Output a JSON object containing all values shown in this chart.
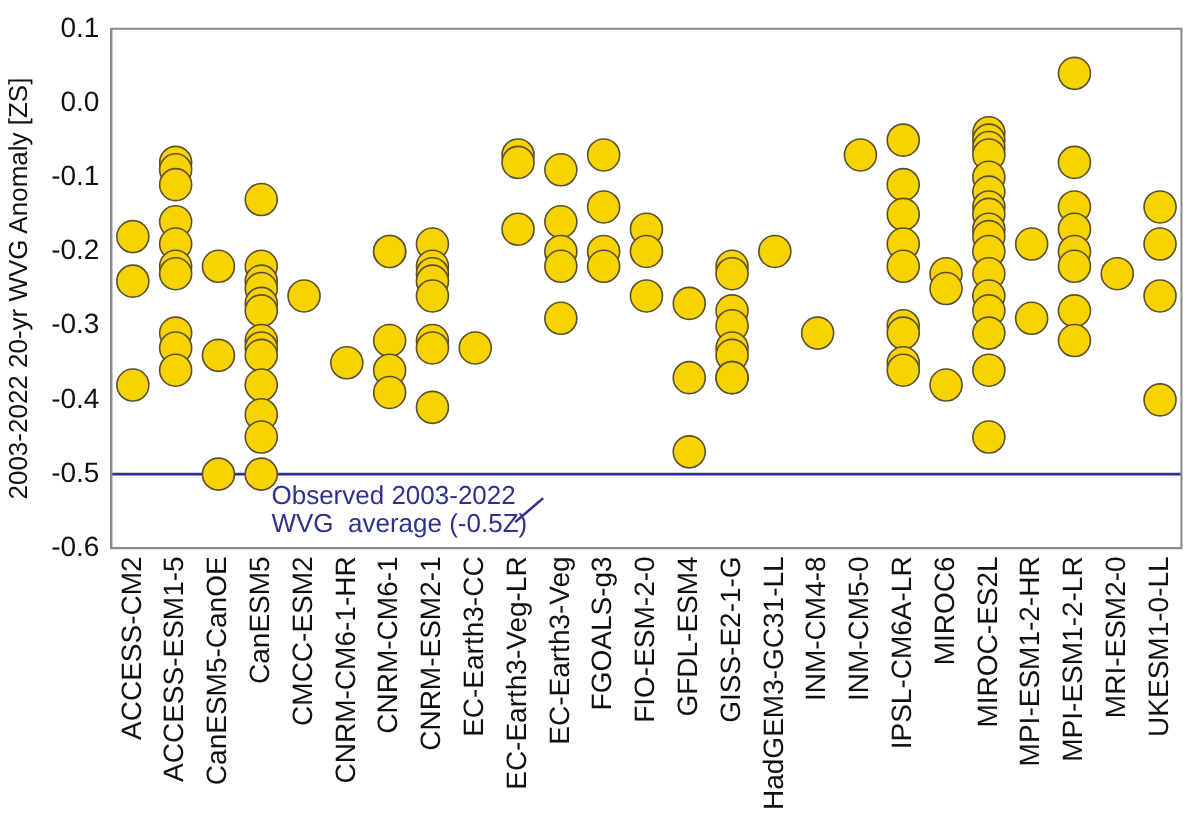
{
  "chart_data": {
    "type": "scatter",
    "ylabel": "2003-2022 20-yr WVG Anomaly [ZS]",
    "categories": [
      "ACCESS-CM2",
      "ACCESS-ESM1-5",
      "CanESM5-CanOE",
      "CanESM5",
      "CMCC-ESM2",
      "CNRM-CM6-1-HR",
      "CNRM-CM6-1",
      "CNRM-ESM2-1",
      "EC-Earth3-CC",
      "EC-Earth3-Veg-LR",
      "EC-Earth3-Veg",
      "FGOALS-g3",
      "FIO-ESM-2-0",
      "GFDL-ESM4",
      "GISS-E2-1-G",
      "HadGEM3-GC31-LL",
      "INM-CM4-8",
      "INM-CM5-0",
      "IPSL-CM6A-LR",
      "MIROC6",
      "MIROC-ES2L",
      "MPI-ESM1-2-HR",
      "MPI-ESM1-2-LR",
      "MRI-ESM2-0",
      "UKESM1-0-LL"
    ],
    "series": [
      {
        "color": "#f7d300",
        "x": [
          "ACCESS-CM2",
          "ACCESS-CM2",
          "ACCESS-CM2",
          "ACCESS-ESM1-5",
          "ACCESS-ESM1-5",
          "ACCESS-ESM1-5",
          "ACCESS-ESM1-5",
          "ACCESS-ESM1-5",
          "ACCESS-ESM1-5",
          "ACCESS-ESM1-5",
          "ACCESS-ESM1-5",
          "ACCESS-ESM1-5",
          "ACCESS-ESM1-5",
          "CanESM5-CanOE",
          "CanESM5-CanOE",
          "CanESM5-CanOE",
          "CanESM5",
          "CanESM5",
          "CanESM5",
          "CanESM5",
          "CanESM5",
          "CanESM5",
          "CanESM5",
          "CanESM5",
          "CanESM5",
          "CanESM5",
          "CanESM5",
          "CanESM5",
          "CanESM5",
          "CMCC-ESM2",
          "CNRM-CM6-1-HR",
          "CNRM-CM6-1",
          "CNRM-CM6-1",
          "CNRM-CM6-1",
          "CNRM-CM6-1",
          "CNRM-CM6-1",
          "CNRM-ESM2-1",
          "CNRM-ESM2-1",
          "CNRM-ESM2-1",
          "CNRM-ESM2-1",
          "CNRM-ESM2-1",
          "CNRM-ESM2-1",
          "CNRM-ESM2-1",
          "CNRM-ESM2-1",
          "EC-Earth3-CC",
          "EC-Earth3-Veg-LR",
          "EC-Earth3-Veg-LR",
          "EC-Earth3-Veg-LR",
          "EC-Earth3-Veg",
          "EC-Earth3-Veg",
          "EC-Earth3-Veg",
          "EC-Earth3-Veg",
          "EC-Earth3-Veg",
          "FGOALS-g3",
          "FGOALS-g3",
          "FGOALS-g3",
          "FGOALS-g3",
          "FIO-ESM-2-0",
          "FIO-ESM-2-0",
          "FIO-ESM-2-0",
          "GFDL-ESM4",
          "GFDL-ESM4",
          "GFDL-ESM4",
          "GISS-E2-1-G",
          "GISS-E2-1-G",
          "GISS-E2-1-G",
          "GISS-E2-1-G",
          "GISS-E2-1-G",
          "GISS-E2-1-G",
          "GISS-E2-1-G",
          "GISS-E2-1-G",
          "HadGEM3-GC31-LL",
          "INM-CM4-8",
          "INM-CM5-0",
          "IPSL-CM6A-LR",
          "IPSL-CM6A-LR",
          "IPSL-CM6A-LR",
          "IPSL-CM6A-LR",
          "IPSL-CM6A-LR",
          "IPSL-CM6A-LR",
          "IPSL-CM6A-LR",
          "IPSL-CM6A-LR",
          "IPSL-CM6A-LR",
          "MIROC6",
          "MIROC6",
          "MIROC6",
          "MIROC-ES2L",
          "MIROC-ES2L",
          "MIROC-ES2L",
          "MIROC-ES2L",
          "MIROC-ES2L",
          "MIROC-ES2L",
          "MIROC-ES2L",
          "MIROC-ES2L",
          "MIROC-ES2L",
          "MIROC-ES2L",
          "MIROC-ES2L",
          "MIROC-ES2L",
          "MIROC-ES2L",
          "MIROC-ES2L",
          "MIROC-ES2L",
          "MIROC-ES2L",
          "MIROC-ES2L",
          "MPI-ESM1-2-HR",
          "MPI-ESM1-2-HR",
          "MPI-ESM1-2-LR",
          "MPI-ESM1-2-LR",
          "MPI-ESM1-2-LR",
          "MPI-ESM1-2-LR",
          "MPI-ESM1-2-LR",
          "MPI-ESM1-2-LR",
          "MPI-ESM1-2-LR",
          "MPI-ESM1-2-LR",
          "MRI-ESM2-0",
          "UKESM1-0-LL",
          "UKESM1-0-LL",
          "UKESM1-0-LL",
          "UKESM1-0-LL"
        ],
        "values": [
          -0.18,
          -0.24,
          -0.38,
          -0.08,
          -0.09,
          -0.11,
          -0.16,
          -0.19,
          -0.22,
          -0.23,
          -0.31,
          -0.33,
          -0.36,
          -0.22,
          -0.34,
          -0.5,
          -0.13,
          -0.22,
          -0.24,
          -0.25,
          -0.27,
          -0.28,
          -0.32,
          -0.33,
          -0.34,
          -0.38,
          -0.42,
          -0.45,
          -0.5,
          -0.26,
          -0.35,
          -0.2,
          -0.2,
          -0.32,
          -0.36,
          -0.39,
          -0.19,
          -0.22,
          -0.23,
          -0.24,
          -0.26,
          -0.32,
          -0.33,
          -0.41,
          -0.33,
          -0.07,
          -0.08,
          -0.17,
          -0.09,
          -0.16,
          -0.2,
          -0.22,
          -0.29,
          -0.07,
          -0.14,
          -0.2,
          -0.22,
          -0.17,
          -0.2,
          -0.26,
          -0.27,
          -0.37,
          -0.47,
          -0.22,
          -0.23,
          -0.28,
          -0.3,
          -0.33,
          -0.34,
          -0.37,
          -0.37,
          -0.2,
          -0.31,
          -0.07,
          -0.05,
          -0.11,
          -0.15,
          -0.19,
          -0.22,
          -0.3,
          -0.31,
          -0.35,
          -0.36,
          -0.23,
          -0.25,
          -0.38,
          -0.04,
          -0.05,
          -0.06,
          -0.07,
          -0.1,
          -0.12,
          -0.14,
          -0.15,
          -0.17,
          -0.18,
          -0.2,
          -0.23,
          -0.26,
          -0.28,
          -0.31,
          -0.36,
          -0.45,
          -0.19,
          -0.29,
          0.04,
          -0.08,
          -0.14,
          -0.17,
          -0.2,
          -0.22,
          -0.28,
          -0.32,
          -0.23,
          -0.14,
          -0.19,
          -0.26,
          -0.4
        ]
      }
    ],
    "ylim": [
      -0.6,
      0.1
    ],
    "yticks": [
      -0.6,
      -0.5,
      -0.4,
      -0.3,
      -0.2,
      -0.1,
      {
        "value": 0,
        "label": "0.0"
      },
      0.1
    ],
    "ref_lines": [
      {
        "axis": "y",
        "value": -0.5,
        "label": "Observed 2003-2022\nWVG  average (-0.5Z)",
        "color": "#2e3192"
      }
    ],
    "grid": false,
    "legend": false,
    "marker": "circle"
  }
}
